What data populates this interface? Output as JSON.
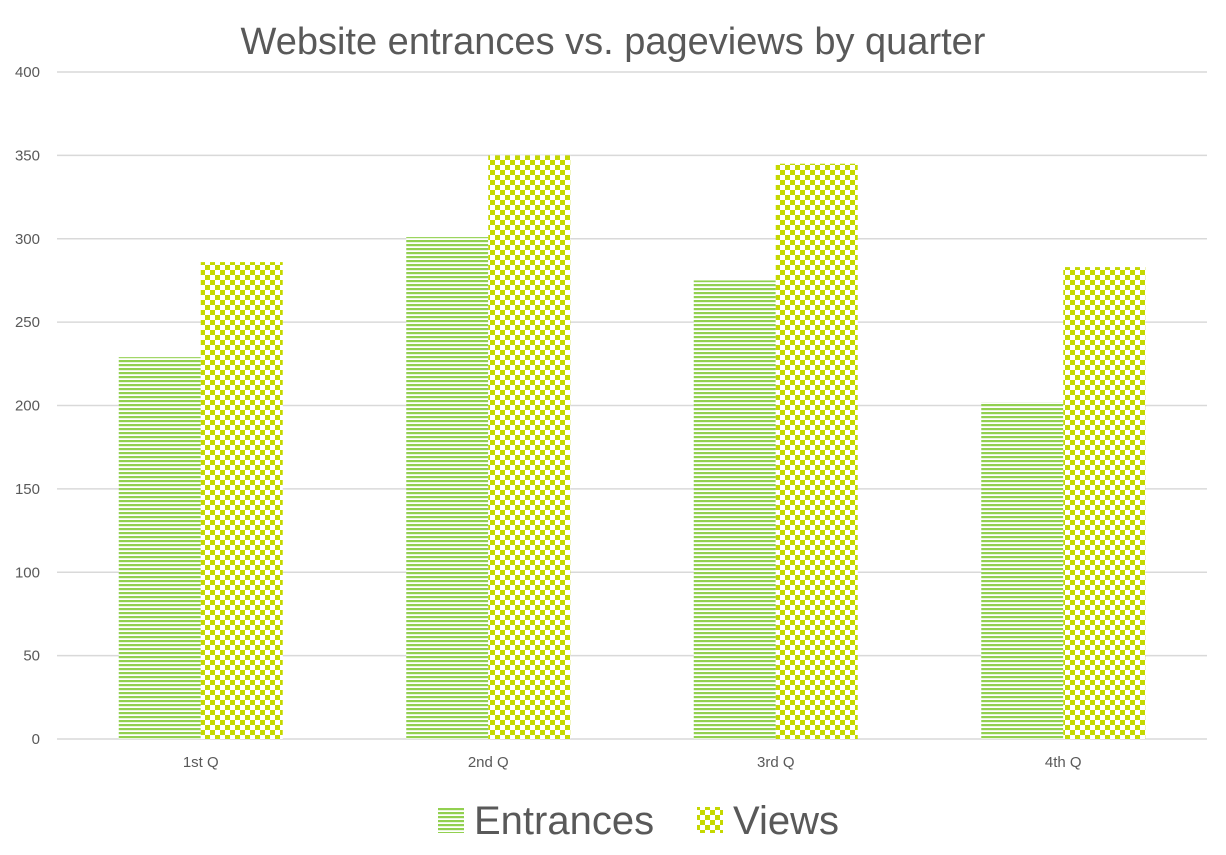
{
  "chart_data": {
    "type": "bar",
    "title": "Website entrances vs. pageviews by quarter",
    "xlabel": "",
    "ylabel": "",
    "categories": [
      "1st Q",
      "2nd Q",
      "3rd Q",
      "4th Q"
    ],
    "series": [
      {
        "name": "Entrances",
        "values": [
          229,
          301,
          275,
          202
        ],
        "color": "#92d050",
        "pattern": "horizontal-lines"
      },
      {
        "name": "Views",
        "values": [
          286,
          350,
          345,
          283
        ],
        "color": "#c5d800",
        "pattern": "checkerboard"
      }
    ],
    "ylim": [
      0,
      400
    ],
    "yticks": [
      0,
      50,
      100,
      150,
      200,
      250,
      300,
      350,
      400
    ],
    "grid": true,
    "legend": "bottom"
  }
}
